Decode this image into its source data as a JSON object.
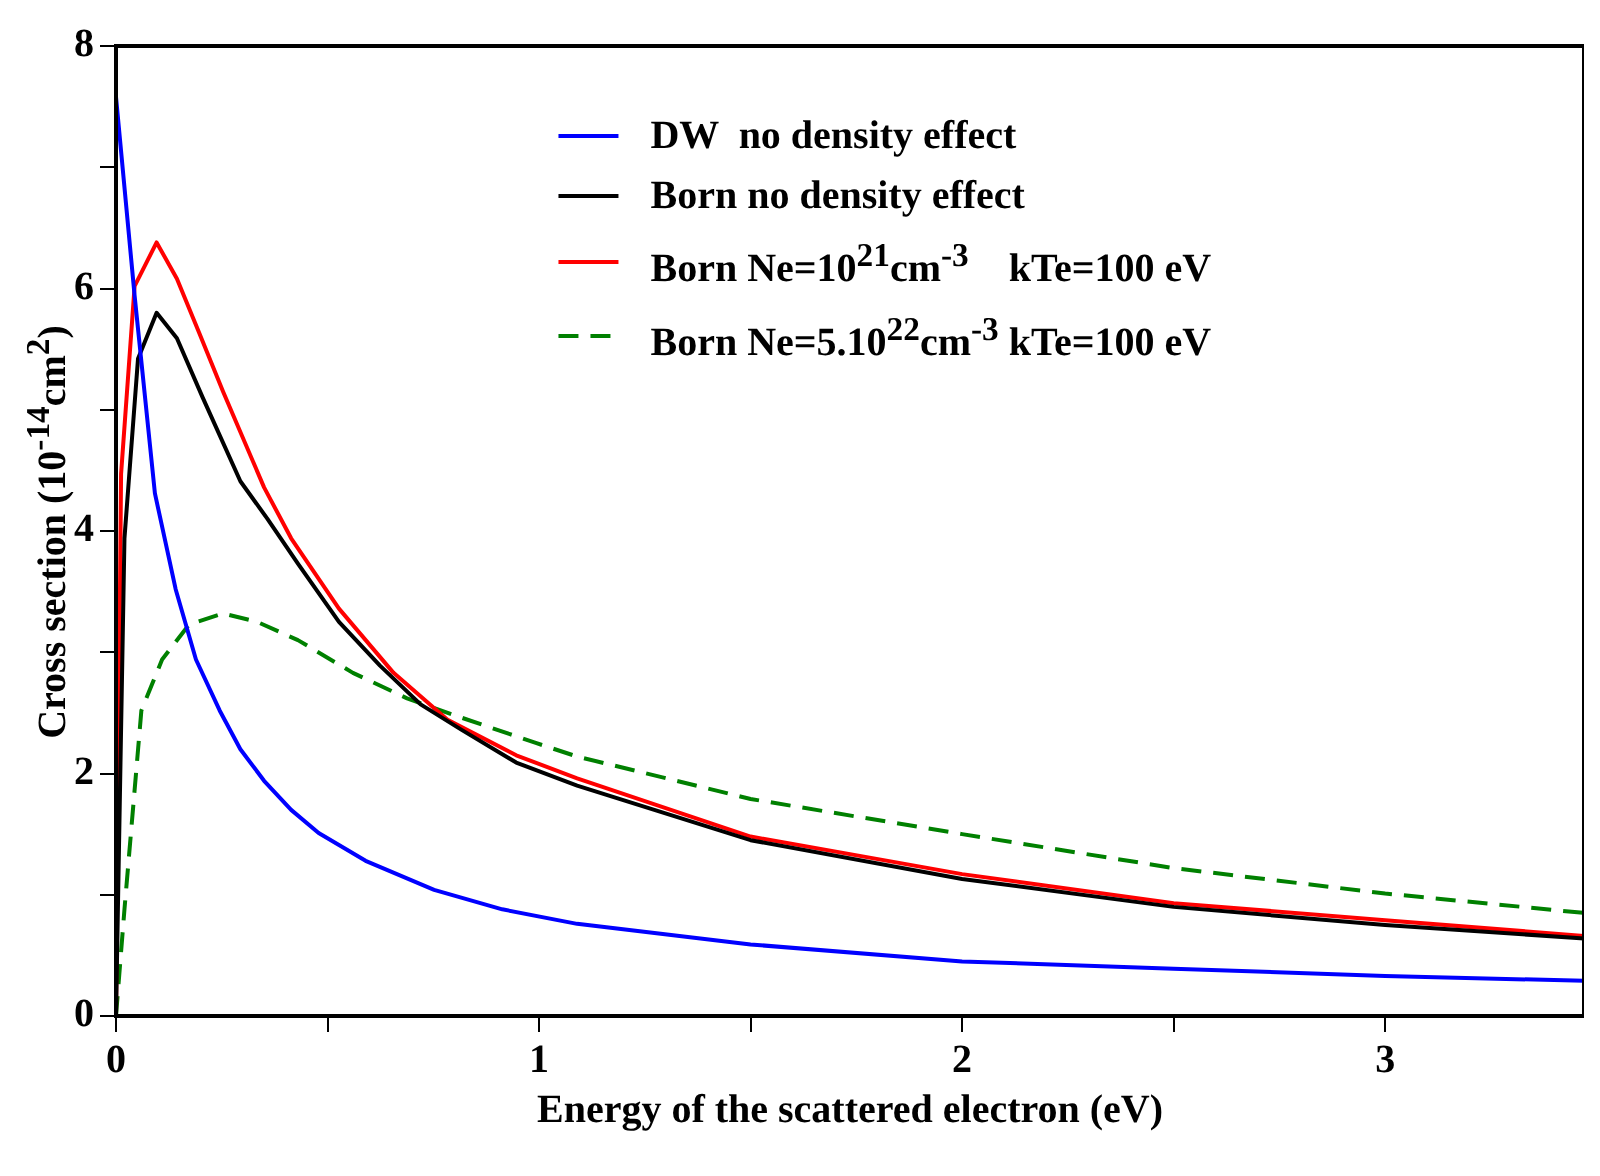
{
  "chart_data": {
    "type": "line",
    "xlabel": "Energy of the scattered electron (eV)",
    "ylabel": "Cross section (10$^{-14}$cm$^{2}$)",
    "xlim": [
      0,
      3.47
    ],
    "ylim": [
      0,
      8
    ],
    "xticks": [
      0,
      {
        "value": 0.5,
        "label": null
      },
      1,
      {
        "value": 1.5,
        "label": null
      },
      2,
      {
        "value": 2.5,
        "label": null
      },
      3
    ],
    "yticks": [
      0,
      {
        "value": 1,
        "label": null
      },
      2,
      {
        "value": 3,
        "label": null
      },
      4,
      {
        "value": 5,
        "label": null
      },
      6,
      {
        "value": 7,
        "label": null
      },
      8
    ],
    "legend": "top",
    "marker": "none",
    "series": [
      {
        "name": "DW  no density effect",
        "color": "#0000ff",
        "line_style": "solid",
        "x": [
          0,
          0.044,
          0.092,
          0.141,
          0.189,
          0.245,
          0.294,
          0.35,
          0.414,
          0.479,
          0.59,
          0.752,
          0.913,
          1.09,
          1.5,
          2,
          2.5,
          3,
          3.47
        ],
        "values": [
          7.58,
          5.94,
          4.31,
          3.52,
          2.94,
          2.52,
          2.2,
          1.94,
          1.7,
          1.51,
          1.28,
          1.04,
          0.88,
          0.76,
          0.59,
          0.45,
          0.39,
          0.33,
          0.29
        ]
      },
      {
        "name": "Born no density effect",
        "color": "#000000",
        "line_style": "solid",
        "x": [
          0,
          0.02,
          0.052,
          0.096,
          0.144,
          0.205,
          0.294,
          0.358,
          0.43,
          0.527,
          0.624,
          0.72,
          0.817,
          0.946,
          1.09,
          1.5,
          2,
          2.5,
          3,
          3.47
        ],
        "values": [
          0,
          3.94,
          5.42,
          5.8,
          5.59,
          5.1,
          4.41,
          4.1,
          3.73,
          3.25,
          2.89,
          2.57,
          2.36,
          2.09,
          1.9,
          1.45,
          1.13,
          0.9,
          0.75,
          0.64
        ]
      },
      {
        "name": "Born Ne=10$^{21}$cm$^{-3}$    kTe=100 eV",
        "color": "#ff0000",
        "line_style": "solid",
        "x": [
          0,
          0.012,
          0.044,
          0.096,
          0.144,
          0.197,
          0.253,
          0.35,
          0.414,
          0.527,
          0.656,
          0.785,
          0.946,
          1.09,
          1.5,
          2,
          2.5,
          3,
          3.47
        ],
        "values": [
          0,
          4.47,
          6.02,
          6.38,
          6.08,
          5.63,
          5.15,
          4.36,
          3.94,
          3.36,
          2.83,
          2.44,
          2.15,
          1.96,
          1.48,
          1.17,
          0.93,
          0.79,
          0.66
        ]
      },
      {
        "name": "Born Ne=5.10$^{22}$cm$^{-3}$ kTe=100 eV",
        "color": "#008000",
        "line_style": "dashed",
        "x": [
          0,
          0.02,
          0.06,
          0.109,
          0.173,
          0.253,
          0.334,
          0.43,
          0.56,
          0.688,
          0.817,
          0.994,
          1.09,
          1.5,
          2,
          2.5,
          3,
          3.47
        ],
        "values": [
          0,
          0.88,
          2.52,
          2.94,
          3.23,
          3.32,
          3.25,
          3.1,
          2.83,
          2.62,
          2.46,
          2.25,
          2.14,
          1.79,
          1.5,
          1.22,
          1.01,
          0.85
        ]
      }
    ]
  }
}
